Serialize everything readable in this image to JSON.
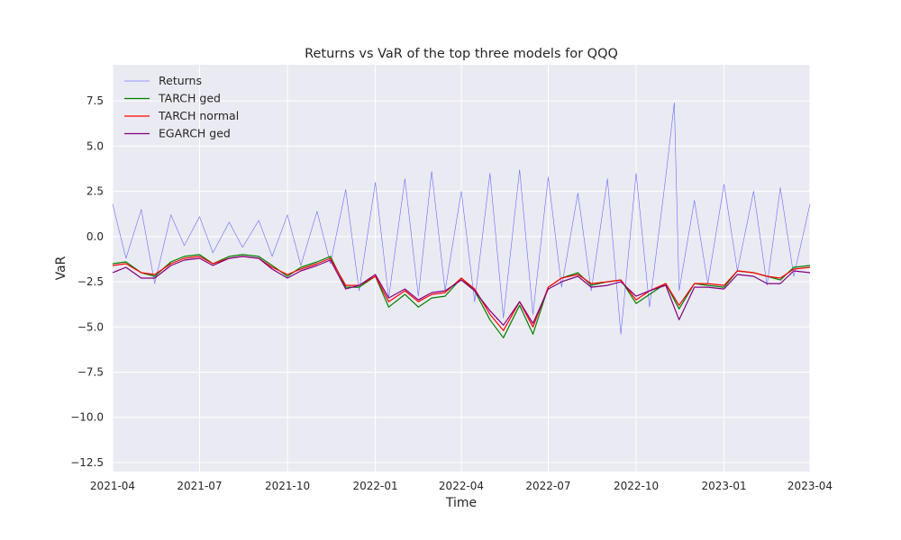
{
  "chart_data": {
    "type": "line",
    "title": "Returns vs VaR of the top three models for QQQ",
    "xlabel": "Time",
    "ylabel": "VaR",
    "xlim": [
      "2021-04-01",
      "2023-04-01"
    ],
    "ylim": [
      -13.0,
      9.5
    ],
    "x_ticks": [
      "2021-04",
      "2021-07",
      "2021-10",
      "2022-01",
      "2022-04",
      "2022-07",
      "2022-10",
      "2023-01",
      "2023-04"
    ],
    "y_ticks": [
      7.5,
      5.0,
      2.5,
      0.0,
      -2.5,
      -5.0,
      -7.5,
      -10.0,
      -12.5
    ],
    "y_tick_labels": [
      "7.5",
      "5.0",
      "2.5",
      "0.0",
      "−2.5",
      "−5.0",
      "−7.5",
      "−10.0",
      "−12.5"
    ],
    "grid": true,
    "legend_position": "top-left",
    "background": "#eaeaf2",
    "series": [
      {
        "name": "Returns",
        "color": "#0000ff",
        "x": [
          "2021-04-01",
          "2021-04-15",
          "2021-05-01",
          "2021-05-15",
          "2021-06-01",
          "2021-06-15",
          "2021-07-01",
          "2021-07-15",
          "2021-08-01",
          "2021-08-15",
          "2021-09-01",
          "2021-09-15",
          "2021-10-01",
          "2021-10-15",
          "2021-11-01",
          "2021-11-15",
          "2021-12-01",
          "2021-12-15",
          "2022-01-01",
          "2022-01-15",
          "2022-02-01",
          "2022-02-15",
          "2022-03-01",
          "2022-03-15",
          "2022-04-01",
          "2022-04-15",
          "2022-05-01",
          "2022-05-15",
          "2022-06-01",
          "2022-06-15",
          "2022-07-01",
          "2022-07-15",
          "2022-08-01",
          "2022-08-15",
          "2022-09-01",
          "2022-09-15",
          "2022-10-01",
          "2022-10-15",
          "2022-11-01",
          "2022-11-10",
          "2022-11-15",
          "2022-12-01",
          "2022-12-15",
          "2023-01-01",
          "2023-01-15",
          "2023-02-01",
          "2023-02-15",
          "2023-03-01",
          "2023-03-15",
          "2023-04-01"
        ],
        "values": [
          1.8,
          -1.2,
          1.5,
          -2.6,
          1.2,
          -0.5,
          1.1,
          -0.9,
          0.8,
          -0.6,
          0.9,
          -1.1,
          1.2,
          -1.6,
          1.4,
          -1.5,
          2.6,
          -3.0,
          3.0,
          -3.4,
          3.2,
          -3.3,
          3.6,
          -3.0,
          2.5,
          -3.6,
          3.5,
          -4.5,
          3.7,
          -4.3,
          3.3,
          -2.8,
          2.4,
          -3.0,
          3.2,
          -5.4,
          3.5,
          -3.9,
          3.3,
          7.4,
          -3.0,
          2.0,
          -2.6,
          2.9,
          -1.9,
          2.5,
          -2.7,
          2.7,
          -2.2,
          1.8
        ]
      },
      {
        "name": "TARCH ged",
        "color": "#008000",
        "x": [
          "2021-04-01",
          "2021-04-15",
          "2021-05-01",
          "2021-05-15",
          "2021-06-01",
          "2021-06-15",
          "2021-07-01",
          "2021-07-15",
          "2021-08-01",
          "2021-08-15",
          "2021-09-01",
          "2021-09-15",
          "2021-10-01",
          "2021-10-15",
          "2021-11-01",
          "2021-11-15",
          "2021-12-01",
          "2021-12-15",
          "2022-01-01",
          "2022-01-15",
          "2022-02-01",
          "2022-02-15",
          "2022-03-01",
          "2022-03-15",
          "2022-04-01",
          "2022-04-15",
          "2022-05-01",
          "2022-05-15",
          "2022-06-01",
          "2022-06-15",
          "2022-07-01",
          "2022-07-15",
          "2022-08-01",
          "2022-08-15",
          "2022-09-01",
          "2022-09-15",
          "2022-10-01",
          "2022-10-15",
          "2022-11-01",
          "2022-11-15",
          "2022-12-01",
          "2022-12-15",
          "2023-01-01",
          "2023-01-15",
          "2023-02-01",
          "2023-02-15",
          "2023-03-01",
          "2023-03-15",
          "2023-04-01"
        ],
        "values": [
          -1.5,
          -1.4,
          -2.0,
          -2.2,
          -1.4,
          -1.1,
          -1.0,
          -1.5,
          -1.1,
          -1.0,
          -1.1,
          -1.6,
          -2.2,
          -1.7,
          -1.4,
          -1.1,
          -2.8,
          -2.8,
          -2.2,
          -3.9,
          -3.2,
          -3.9,
          -3.4,
          -3.3,
          -2.3,
          -3.0,
          -4.6,
          -5.6,
          -3.8,
          -5.4,
          -2.8,
          -2.3,
          -2.0,
          -2.7,
          -2.5,
          -2.4,
          -3.7,
          -3.2,
          -2.6,
          -4.0,
          -2.6,
          -2.7,
          -2.8,
          -1.9,
          -2.0,
          -2.2,
          -2.4,
          -1.7,
          -1.6
        ]
      },
      {
        "name": "TARCH normal",
        "color": "#ff0000",
        "x": [
          "2021-04-01",
          "2021-04-15",
          "2021-05-01",
          "2021-05-15",
          "2021-06-01",
          "2021-06-15",
          "2021-07-01",
          "2021-07-15",
          "2021-08-01",
          "2021-08-15",
          "2021-09-01",
          "2021-09-15",
          "2021-10-01",
          "2021-10-15",
          "2021-11-01",
          "2021-11-15",
          "2021-12-01",
          "2021-12-15",
          "2022-01-01",
          "2022-01-15",
          "2022-02-01",
          "2022-02-15",
          "2022-03-01",
          "2022-03-15",
          "2022-04-01",
          "2022-04-15",
          "2022-05-01",
          "2022-05-15",
          "2022-06-01",
          "2022-06-15",
          "2022-07-01",
          "2022-07-15",
          "2022-08-01",
          "2022-08-15",
          "2022-09-01",
          "2022-09-15",
          "2022-10-01",
          "2022-10-15",
          "2022-11-01",
          "2022-11-15",
          "2022-12-01",
          "2022-12-15",
          "2023-01-01",
          "2023-01-15",
          "2023-02-01",
          "2023-02-15",
          "2023-03-01",
          "2023-03-15",
          "2023-04-01"
        ],
        "values": [
          -1.6,
          -1.5,
          -2.0,
          -2.1,
          -1.5,
          -1.2,
          -1.1,
          -1.5,
          -1.2,
          -1.1,
          -1.2,
          -1.7,
          -2.1,
          -1.8,
          -1.5,
          -1.2,
          -2.7,
          -2.7,
          -2.2,
          -3.6,
          -3.0,
          -3.6,
          -3.2,
          -3.1,
          -2.3,
          -2.9,
          -4.3,
          -5.2,
          -3.6,
          -5.0,
          -2.8,
          -2.3,
          -2.1,
          -2.6,
          -2.5,
          -2.4,
          -3.5,
          -3.0,
          -2.6,
          -3.8,
          -2.6,
          -2.6,
          -2.7,
          -1.9,
          -2.0,
          -2.2,
          -2.3,
          -1.8,
          -1.7
        ]
      },
      {
        "name": "EGARCH ged",
        "color": "#800080",
        "x": [
          "2021-04-01",
          "2021-04-15",
          "2021-05-01",
          "2021-05-15",
          "2021-06-01",
          "2021-06-15",
          "2021-07-01",
          "2021-07-15",
          "2021-08-01",
          "2021-08-15",
          "2021-09-01",
          "2021-09-15",
          "2021-10-01",
          "2021-10-15",
          "2021-11-01",
          "2021-11-15",
          "2021-12-01",
          "2021-12-15",
          "2022-01-01",
          "2022-01-15",
          "2022-02-01",
          "2022-02-15",
          "2022-03-01",
          "2022-03-15",
          "2022-04-01",
          "2022-04-15",
          "2022-05-01",
          "2022-05-15",
          "2022-06-01",
          "2022-06-15",
          "2022-07-01",
          "2022-07-15",
          "2022-08-01",
          "2022-08-15",
          "2022-09-01",
          "2022-09-15",
          "2022-10-01",
          "2022-10-15",
          "2022-11-01",
          "2022-11-15",
          "2022-12-01",
          "2022-12-15",
          "2023-01-01",
          "2023-01-15",
          "2023-02-01",
          "2023-02-15",
          "2023-03-01",
          "2023-03-15",
          "2023-04-01"
        ],
        "values": [
          -2.0,
          -1.7,
          -2.3,
          -2.3,
          -1.6,
          -1.3,
          -1.2,
          -1.6,
          -1.2,
          -1.1,
          -1.2,
          -1.8,
          -2.3,
          -1.9,
          -1.6,
          -1.3,
          -2.9,
          -2.7,
          -2.1,
          -3.4,
          -2.9,
          -3.5,
          -3.1,
          -3.0,
          -2.4,
          -3.0,
          -4.1,
          -4.9,
          -3.6,
          -4.8,
          -2.9,
          -2.5,
          -2.2,
          -2.8,
          -2.7,
          -2.5,
          -3.3,
          -3.0,
          -2.7,
          -4.6,
          -2.8,
          -2.8,
          -2.9,
          -2.1,
          -2.2,
          -2.6,
          -2.6,
          -1.9,
          -2.0
        ]
      }
    ]
  }
}
